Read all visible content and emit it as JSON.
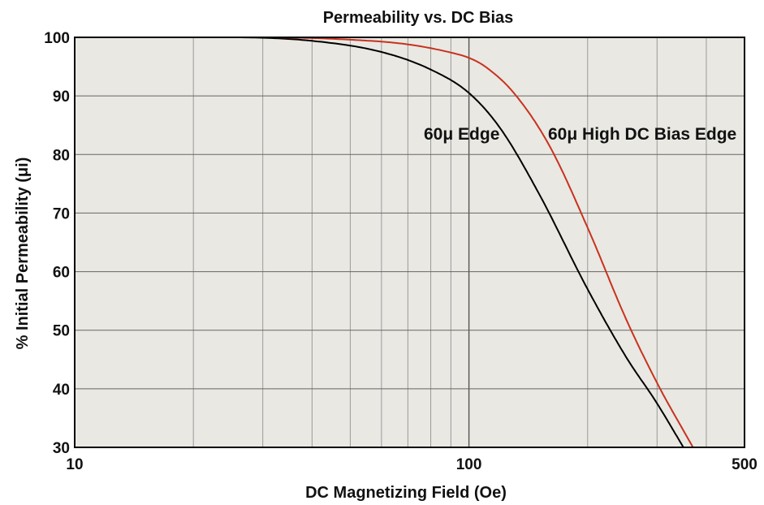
{
  "chart_data": {
    "type": "line",
    "title": "Permeability vs. DC Bias",
    "xlabel": "DC Magnetizing Field (Oe)",
    "ylabel": "% Initial Permeability (μi)",
    "x_scale": "log",
    "xlim": [
      10,
      500
    ],
    "ylim": [
      30,
      100
    ],
    "x_ticks": [
      10,
      100,
      500
    ],
    "y_ticks": [
      30,
      40,
      50,
      60,
      70,
      80,
      90,
      100
    ],
    "grid": true,
    "colors": {
      "plot_background": "#e9e8e3",
      "grid": "#9a9a9a",
      "frame": "#000000"
    },
    "series": [
      {
        "name": "60μ Edge",
        "color": "#000000",
        "x": [
          10,
          25,
          40,
          60,
          80,
          100,
          120,
          150,
          200,
          250,
          300,
          350
        ],
        "y": [
          100,
          100,
          99.4,
          97.5,
          94.5,
          90.5,
          84.5,
          73.5,
          57,
          45.5,
          37.5,
          30
        ]
      },
      {
        "name": "60μ High DC Bias Edge",
        "color": "#c8321e",
        "x": [
          10,
          30,
          50,
          70,
          90,
          100,
          110,
          130,
          160,
          200,
          250,
          300,
          370
        ],
        "y": [
          100,
          100,
          99.6,
          98.8,
          97.4,
          96.5,
          95,
          90.5,
          81.5,
          67.5,
          52,
          41,
          30
        ]
      }
    ]
  }
}
